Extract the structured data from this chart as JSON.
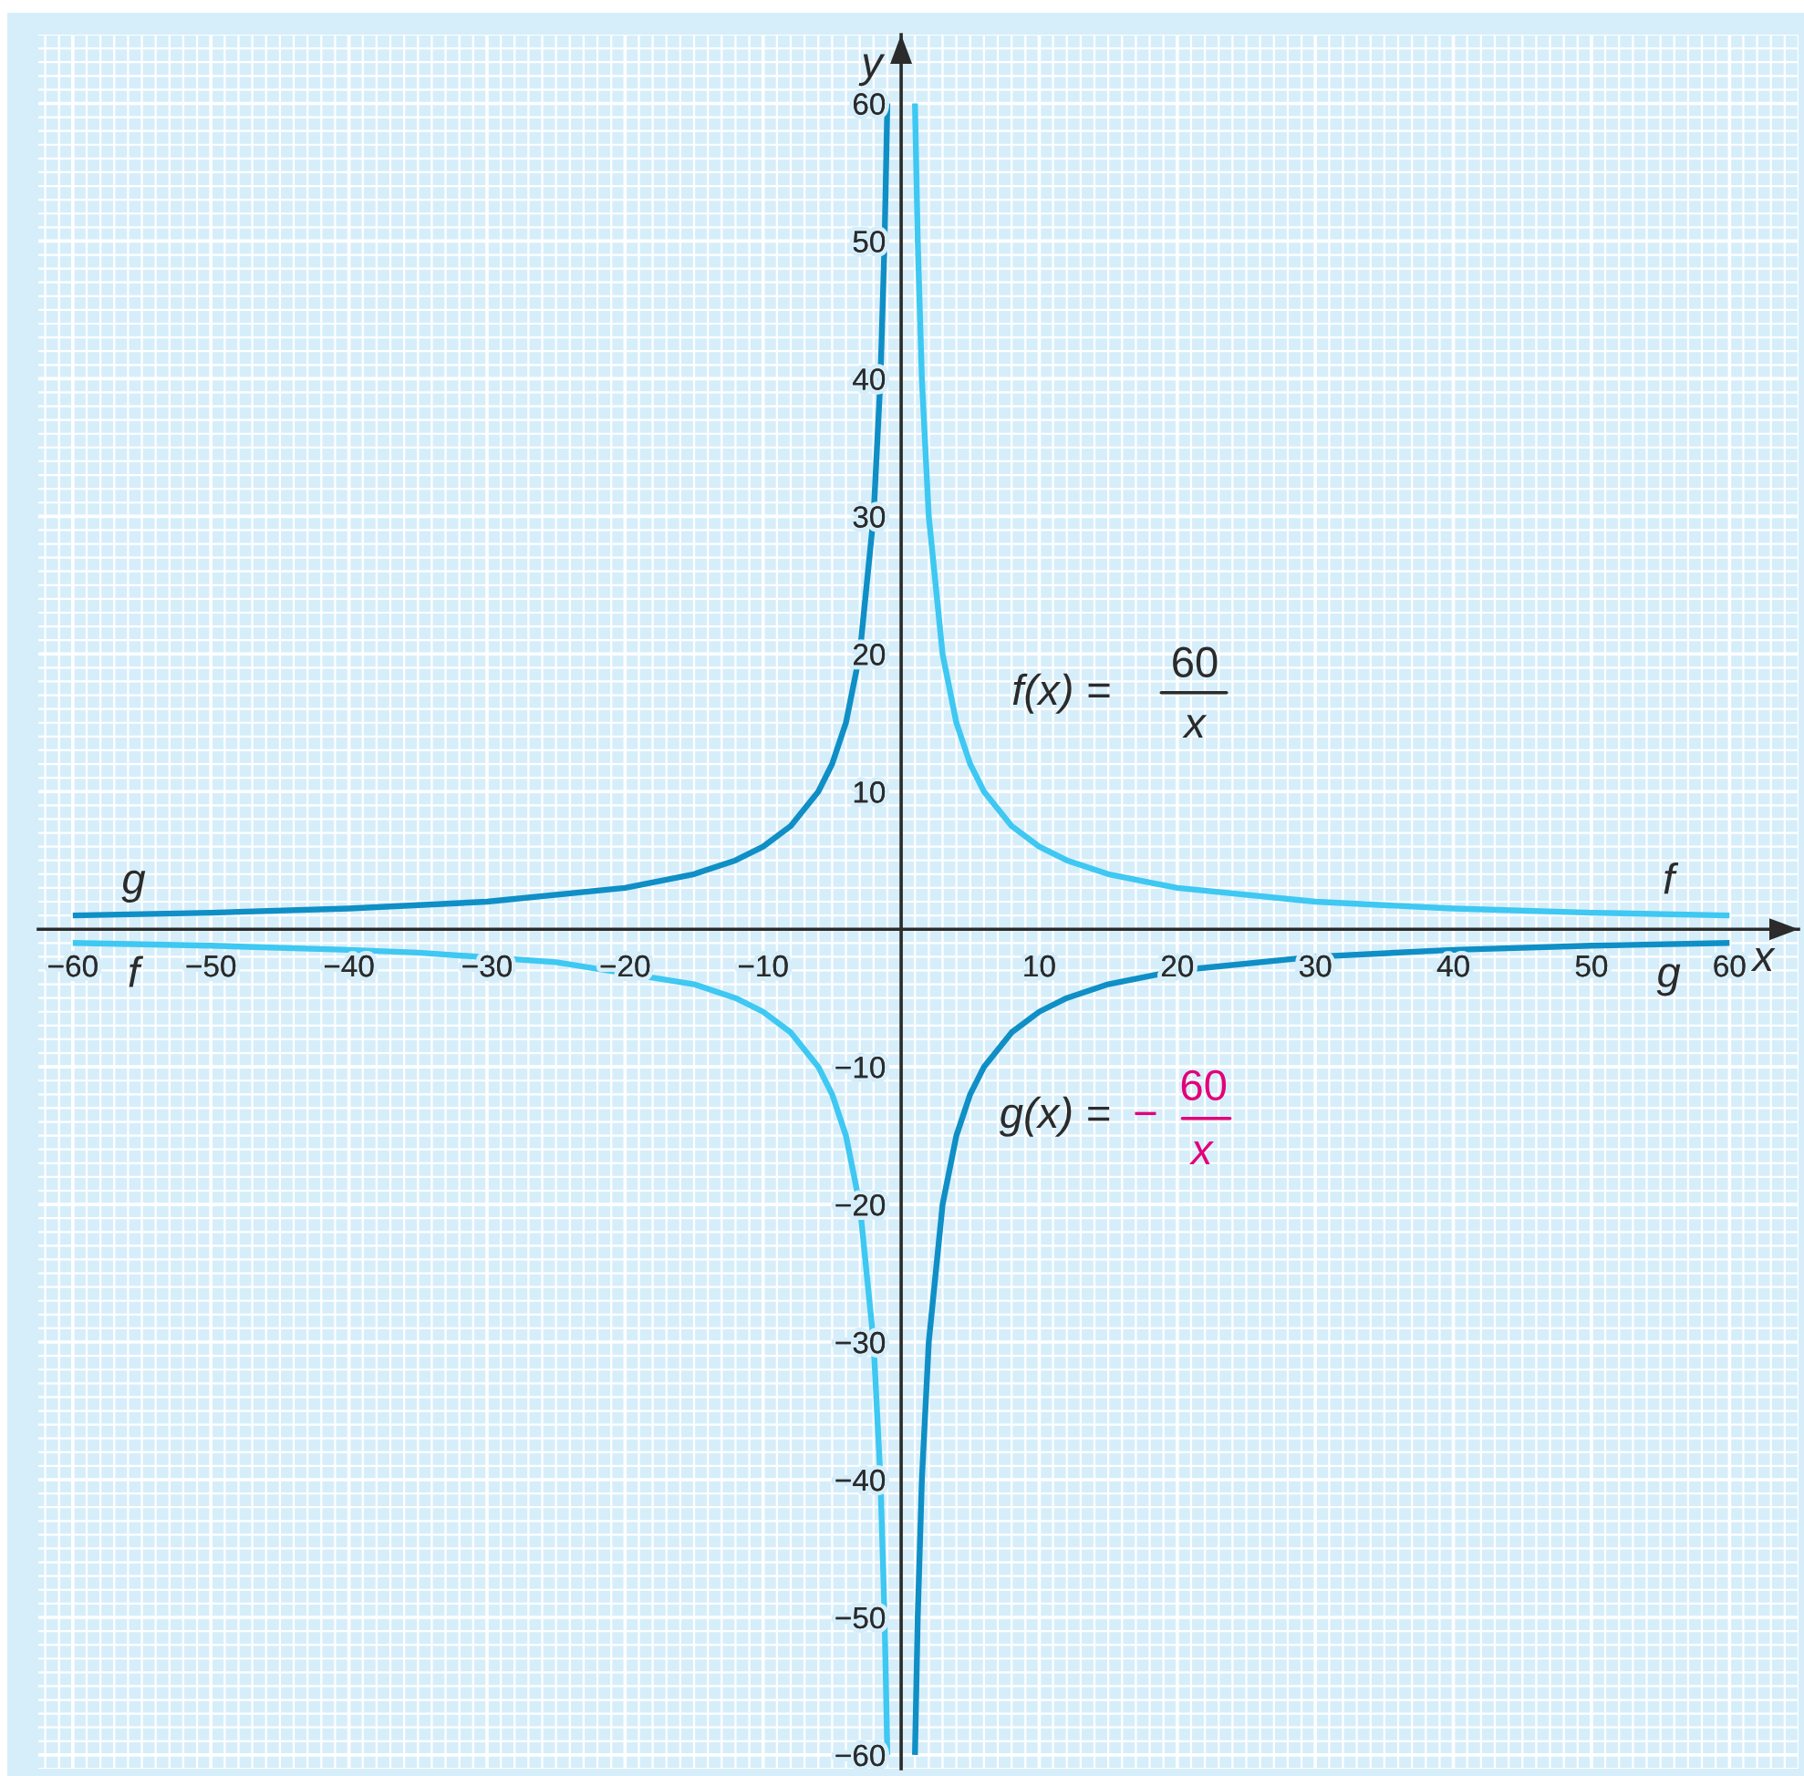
{
  "chart_data": {
    "type": "line",
    "xlabel": "x",
    "ylabel": "y",
    "xlim": [
      -62.5,
      65
    ],
    "ylim": [
      -61,
      65
    ],
    "xticks": [
      {
        "value": -60,
        "label": "−60"
      },
      {
        "value": -50,
        "label": "−50"
      },
      {
        "value": -40,
        "label": "−40"
      },
      {
        "value": -30,
        "label": "−30"
      },
      {
        "value": -20,
        "label": "−20"
      },
      {
        "value": -10,
        "label": "−10"
      },
      10,
      20,
      30,
      40,
      50,
      60
    ],
    "yticks": [
      {
        "value": -60,
        "label": "−60"
      },
      {
        "value": -50,
        "label": "−50"
      },
      {
        "value": -40,
        "label": "−40"
      },
      {
        "value": -30,
        "label": "−30"
      },
      {
        "value": -20,
        "label": "−20"
      },
      {
        "value": -10,
        "label": "−10"
      },
      10,
      20,
      30,
      40,
      50,
      60
    ],
    "grid": true,
    "annotations": [
      "f(x) =",
      "60",
      "x",
      "g(x) =",
      "−",
      "60",
      "x"
    ],
    "series": [
      {
        "name": "f",
        "color": "#3ec8f2",
        "x": [
          1,
          1.2,
          1.5,
          2,
          3,
          4,
          5,
          6,
          8,
          10,
          12,
          15,
          20,
          30,
          40,
          50,
          60
        ],
        "values": [
          60,
          50,
          40,
          30,
          20,
          15,
          12,
          10,
          7.5,
          6,
          5,
          4,
          3,
          2,
          1.5,
          1.2,
          1
        ]
      },
      {
        "name": "f",
        "color": "#3ec8f2",
        "x": [
          -60,
          -50,
          -40,
          -35,
          -25,
          -15,
          -12,
          -10,
          -8,
          -6,
          -5,
          -4,
          -3,
          -2,
          -1.5,
          -1.2,
          -1
        ],
        "values": [
          -1,
          -1.2,
          -1.5,
          -1.7,
          -2.4,
          -4,
          -5,
          -6,
          -7.5,
          -10,
          -12,
          -15,
          -20,
          -30,
          -40,
          -50,
          -60
        ]
      },
      {
        "name": "g",
        "color": "#0f8fc6",
        "x": [
          -60,
          -50,
          -40,
          -30,
          -20,
          -15,
          -12,
          -10,
          -8,
          -6,
          -5,
          -4,
          -3,
          -2,
          -1.5,
          -1.2,
          -1
        ],
        "values": [
          1,
          1.2,
          1.5,
          2,
          3,
          4,
          5,
          6,
          7.5,
          10,
          12,
          15,
          20,
          30,
          40,
          50,
          60
        ]
      },
      {
        "name": "g",
        "color": "#0f8fc6",
        "x": [
          1,
          1.2,
          1.5,
          2,
          3,
          4,
          5,
          6,
          8,
          10,
          12,
          15,
          20,
          30,
          40,
          50,
          60
        ],
        "values": [
          -60,
          -50,
          -40,
          -30,
          -20,
          -15,
          -12,
          -10,
          -7.5,
          -6,
          -5,
          -4,
          -3,
          -2,
          -1.5,
          -1.2,
          -1
        ]
      }
    ]
  }
}
